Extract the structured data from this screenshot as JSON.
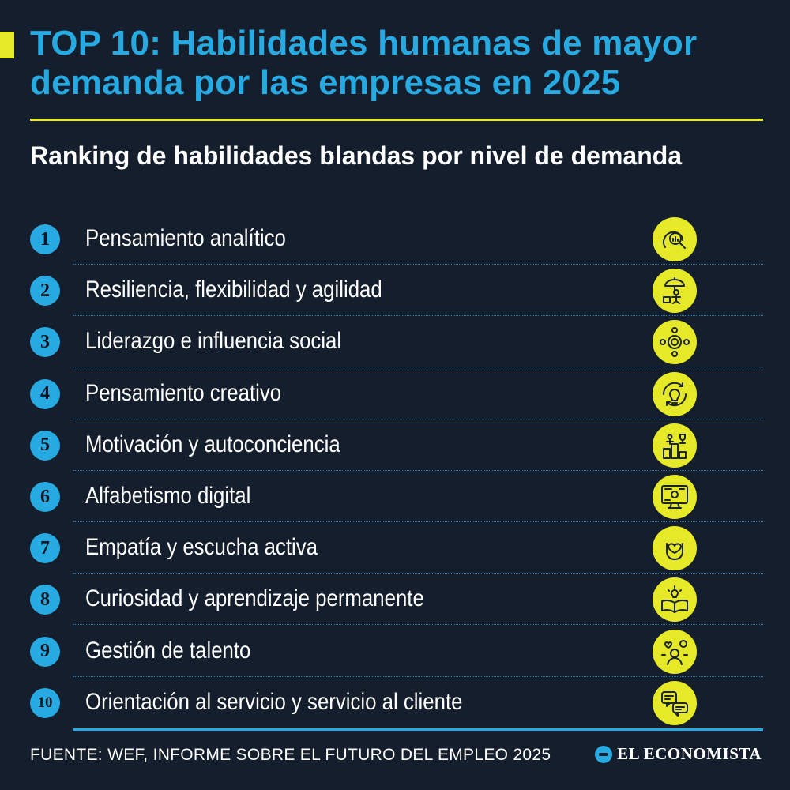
{
  "header": {
    "title": "TOP 10: Habilidades humanas de mayor demanda por las empresas en 2025",
    "subtitle": "Ranking de habilidades blandas por nivel de demanda"
  },
  "items": [
    {
      "rank": "1",
      "label": "Pensamiento analítico",
      "icon": "magnifier-head-icon"
    },
    {
      "rank": "2",
      "label": "Resiliencia, flexibilidad y agilidad",
      "icon": "umbrella-person-icon"
    },
    {
      "rank": "3",
      "label": "Liderazgo e influencia social",
      "icon": "people-network-icon"
    },
    {
      "rank": "4",
      "label": "Pensamiento creativo",
      "icon": "lightbulb-gear-icon"
    },
    {
      "rank": "5",
      "label": "Motivación y autoconciencia",
      "icon": "podium-trophy-icon"
    },
    {
      "rank": "6",
      "label": "Alfabetismo digital",
      "icon": "computer-monitor-icon"
    },
    {
      "rank": "7",
      "label": "Empatía y escucha activa",
      "icon": "heart-hand-icon"
    },
    {
      "rank": "8",
      "label": "Curiosidad y aprendizaje permanente",
      "icon": "book-lightbulb-icon"
    },
    {
      "rank": "9",
      "label": "Gestión de talento",
      "icon": "talent-management-icon"
    },
    {
      "rank": "10",
      "label": "Orientación al servicio y servicio al cliente",
      "icon": "customer-service-icon"
    }
  ],
  "footer": {
    "source": "FUENTE: WEF, INFORME SOBRE EL FUTURO DEL EMPLEO 2025",
    "brand": "EL ECONOMISTA"
  },
  "colors": {
    "background": "#141e2c",
    "accent_blue": "#27a9e1",
    "accent_yellow": "#e6e928"
  }
}
